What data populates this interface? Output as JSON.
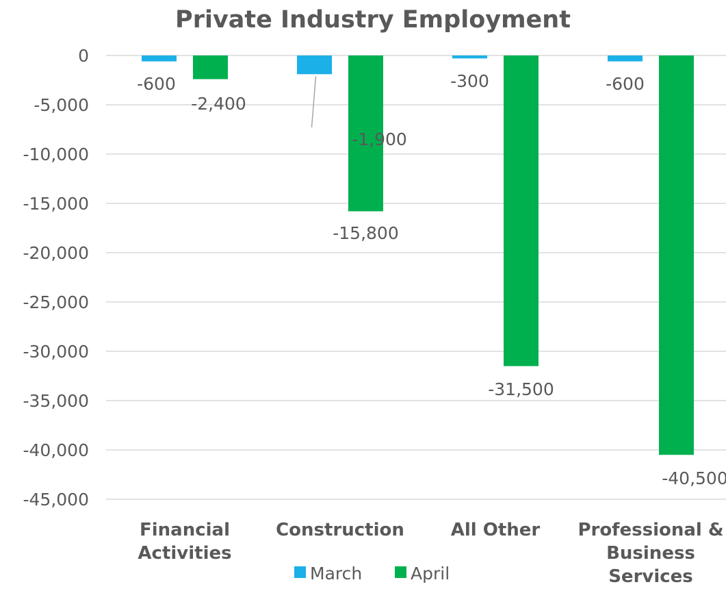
{
  "chart_data": {
    "type": "bar",
    "title": "Private Industry Employment",
    "xlabel": "",
    "ylabel": "",
    "categories": [
      [
        "Financial",
        "Activities"
      ],
      [
        "Construction"
      ],
      [
        "All Other"
      ],
      [
        "Professional &",
        "Business",
        "Services"
      ]
    ],
    "series": [
      {
        "name": "March",
        "color": "#1CB0E8",
        "values": [
          -600,
          -1900,
          -300,
          -600
        ],
        "labels": [
          "-600",
          "-1,900",
          "-300",
          "-600"
        ]
      },
      {
        "name": "April",
        "color": "#00B04F",
        "values": [
          -2400,
          -15800,
          -31500,
          -40500
        ],
        "labels": [
          "-2,400",
          "-15,800",
          "-31,500",
          "-40,500"
        ]
      }
    ],
    "ylim": [
      -45000,
      0
    ],
    "yticks": [
      0,
      -5000,
      -10000,
      -15000,
      -20000,
      -25000,
      -30000,
      -35000,
      -40000,
      -45000
    ],
    "ytick_labels": [
      "0",
      "-5,000",
      "-10,000",
      "-15,000",
      "-20,000",
      "-25,000",
      "-30,000",
      "-35,000",
      "-40,000",
      "-45,000"
    ],
    "grid": true,
    "legend_position": "bottom",
    "colors": {
      "title": "#595959",
      "axis_text": "#595959",
      "category_text": "#595959",
      "gridline": "#D9D9D9",
      "leader_line": "#A6A6A6"
    }
  }
}
